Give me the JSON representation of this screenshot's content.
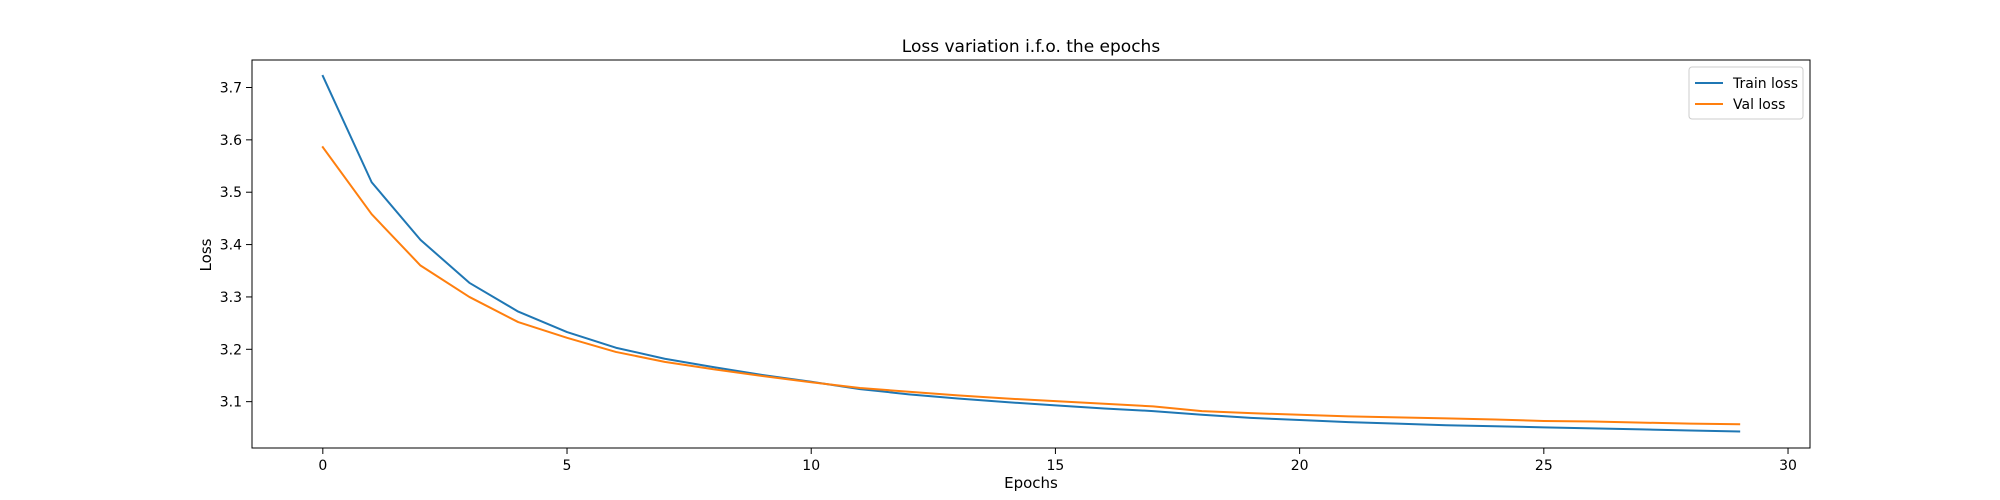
{
  "chart_data": {
    "type": "line",
    "title": "Loss variation i.f.o. the epochs",
    "xlabel": "Epochs",
    "ylabel": "Loss",
    "xlim": [
      -1.45,
      30.45
    ],
    "ylim": [
      3.0115,
      3.7525
    ],
    "xticks": [
      0,
      5,
      10,
      15,
      20,
      25,
      30
    ],
    "yticks": [
      3.1,
      3.2,
      3.3,
      3.4,
      3.5,
      3.6,
      3.7
    ],
    "grid": false,
    "legend_position": "top-right",
    "x": [
      0,
      1,
      2,
      3,
      4,
      5,
      6,
      7,
      8,
      9,
      10,
      11,
      12,
      13,
      14,
      15,
      16,
      17,
      18,
      19,
      20,
      21,
      22,
      23,
      24,
      25,
      26,
      27,
      28,
      29
    ],
    "series": [
      {
        "name": "Train loss",
        "color": "#1f77b4",
        "values": [
          3.722,
          3.519,
          3.409,
          3.327,
          3.272,
          3.233,
          3.203,
          3.182,
          3.166,
          3.151,
          3.138,
          3.124,
          3.114,
          3.106,
          3.099,
          3.093,
          3.087,
          3.082,
          3.075,
          3.069,
          3.065,
          3.061,
          3.058,
          3.055,
          3.053,
          3.051,
          3.049,
          3.047,
          3.045,
          3.043
        ]
      },
      {
        "name": "Val loss",
        "color": "#ff7f0e",
        "values": [
          3.586,
          3.458,
          3.36,
          3.3,
          3.252,
          3.222,
          3.195,
          3.176,
          3.162,
          3.149,
          3.137,
          3.126,
          3.119,
          3.112,
          3.106,
          3.101,
          3.096,
          3.091,
          3.082,
          3.078,
          3.075,
          3.072,
          3.07,
          3.068,
          3.066,
          3.063,
          3.062,
          3.06,
          3.058,
          3.057
        ]
      }
    ]
  }
}
